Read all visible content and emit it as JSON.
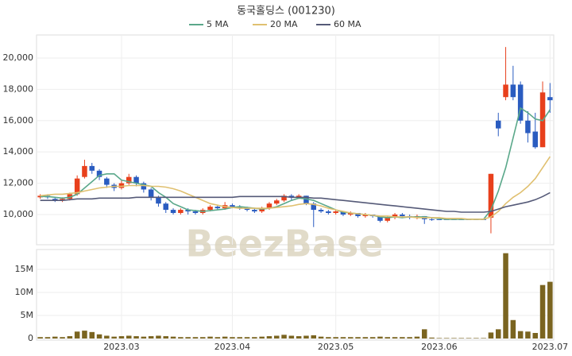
{
  "chart_data": {
    "type": "candlestick",
    "title": "동국홀딩스 (001230)",
    "watermark": "BeezBase",
    "categories": [
      null,
      null,
      null,
      null,
      null,
      null,
      null,
      null,
      null,
      null,
      null,
      "2023.03",
      null,
      null,
      null,
      null,
      null,
      null,
      null,
      null,
      null,
      null,
      null,
      null,
      null,
      null,
      "2023.04",
      null,
      null,
      null,
      null,
      null,
      null,
      null,
      null,
      null,
      null,
      null,
      null,
      null,
      "2023.05",
      null,
      null,
      null,
      null,
      null,
      null,
      null,
      null,
      null,
      null,
      null,
      null,
      null,
      "2023.06",
      null,
      null,
      null,
      null,
      null,
      null,
      null,
      null,
      null,
      null,
      null,
      null,
      null,
      null,
      "2023.07"
    ],
    "open": [
      11100,
      11200,
      11000,
      10900,
      11000,
      11300,
      12400,
      13100,
      12800,
      12300,
      11900,
      11700,
      12000,
      12400,
      12000,
      11600,
      11100,
      10700,
      10300,
      10100,
      10300,
      10200,
      10100,
      10300,
      10500,
      10400,
      10600,
      10500,
      10400,
      10300,
      10200,
      10400,
      10700,
      10900,
      11200,
      11100,
      11200,
      10700,
      10300,
      10200,
      10100,
      10200,
      10000,
      10100,
      9900,
      10000,
      9900,
      9600,
      9800,
      10000,
      9900,
      9800,
      9900,
      9700,
      9700,
      9700,
      9700,
      9700,
      9700,
      9700,
      9700,
      9800,
      16000,
      17500,
      18300,
      18300,
      16000,
      15300,
      14300,
      17500
    ],
    "close": [
      11200,
      11100,
      10900,
      11000,
      11300,
      12300,
      13100,
      12800,
      12400,
      11900,
      11700,
      12000,
      12400,
      12000,
      11600,
      11100,
      10700,
      10300,
      10100,
      10300,
      10200,
      10100,
      10300,
      10500,
      10400,
      10600,
      10500,
      10400,
      10300,
      10200,
      10400,
      10700,
      10900,
      11200,
      11100,
      11200,
      10700,
      10300,
      10200,
      10100,
      10200,
      10000,
      10100,
      9900,
      10000,
      9900,
      9600,
      9800,
      10000,
      9900,
      9800,
      9900,
      9700,
      9700,
      9700,
      9700,
      9700,
      9700,
      9700,
      9700,
      9700,
      12600,
      15500,
      18300,
      17500,
      16000,
      15200,
      14300,
      17800,
      17300
    ],
    "high": [
      11300,
      11300,
      11100,
      11100,
      11400,
      12500,
      13500,
      13300,
      12900,
      12400,
      12000,
      12200,
      12600,
      12500,
      12100,
      11700,
      11200,
      10800,
      10400,
      10400,
      10400,
      10300,
      10400,
      10600,
      10600,
      10800,
      10700,
      10600,
      10500,
      10400,
      10500,
      10800,
      11000,
      11300,
      11300,
      11300,
      11200,
      10800,
      10400,
      10300,
      10300,
      10200,
      10200,
      10100,
      10100,
      10000,
      9900,
      9900,
      10100,
      10100,
      10000,
      10000,
      9900,
      9800,
      9700,
      9700,
      9700,
      9700,
      9700,
      9700,
      9700,
      12600,
      16500,
      20700,
      19500,
      18500,
      16600,
      16500,
      18500,
      18400
    ],
    "low": [
      11000,
      11000,
      10800,
      10800,
      10900,
      11200,
      12300,
      12600,
      12200,
      11700,
      11500,
      11600,
      11900,
      11800,
      11400,
      10900,
      10500,
      10100,
      10000,
      10000,
      10000,
      10000,
      10000,
      10200,
      10300,
      10300,
      10400,
      10300,
      10200,
      10100,
      10100,
      10300,
      10600,
      10800,
      10900,
      11000,
      10600,
      9200,
      10100,
      10000,
      10000,
      9900,
      9900,
      9800,
      9800,
      9800,
      9500,
      9500,
      9700,
      9800,
      9700,
      9700,
      9400,
      9600,
      9700,
      9700,
      9700,
      9700,
      9700,
      9700,
      9700,
      8800,
      15000,
      17300,
      17300,
      15800,
      14600,
      14200,
      14300,
      16500
    ],
    "up_color": "#e8401c",
    "down_color": "#2a5cc0",
    "series": [
      {
        "name": "5 MA",
        "color": "#5aa88a",
        "values": [
          11150,
          11150,
          11100,
          11050,
          11100,
          11300,
          11700,
          12100,
          12500,
          12600,
          12600,
          12200,
          12100,
          12000,
          11900,
          11800,
          11400,
          11100,
          10700,
          10500,
          10300,
          10250,
          10200,
          10250,
          10300,
          10350,
          10450,
          10500,
          10450,
          10400,
          10350,
          10400,
          10500,
          10700,
          10900,
          11050,
          11000,
          10900,
          10700,
          10500,
          10300,
          10150,
          10100,
          10050,
          10000,
          9950,
          9850,
          9800,
          9850,
          9800,
          9850,
          9850,
          9850,
          9800,
          9750,
          9700,
          9700,
          9700,
          9700,
          9700,
          9700,
          10300,
          11500,
          13000,
          14900,
          16800,
          16500,
          16100,
          16000,
          16700
        ]
      },
      {
        "name": "20 MA",
        "color": "#e0c070",
        "values": [
          11200,
          11250,
          11300,
          11300,
          11350,
          11400,
          11500,
          11600,
          11700,
          11750,
          11800,
          11800,
          11850,
          11850,
          11850,
          11800,
          11800,
          11750,
          11650,
          11500,
          11300,
          11100,
          10900,
          10700,
          10600,
          10500,
          10450,
          10400,
          10400,
          10400,
          10400,
          10400,
          10450,
          10500,
          10550,
          10650,
          10700,
          10650,
          10550,
          10400,
          10300,
          10200,
          10100,
          10050,
          10000,
          9950,
          9900,
          9900,
          9850,
          9850,
          9850,
          9800,
          9800,
          9800,
          9800,
          9750,
          9750,
          9750,
          9700,
          9700,
          9700,
          9850,
          10200,
          10700,
          11100,
          11400,
          11800,
          12300,
          13000,
          13700
        ]
      },
      {
        "name": "60 MA",
        "color": "#555a78",
        "values": [
          10900,
          10900,
          10900,
          10900,
          10950,
          11000,
          11000,
          11000,
          11050,
          11050,
          11050,
          11050,
          11050,
          11100,
          11100,
          11100,
          11100,
          11100,
          11100,
          11100,
          11100,
          11100,
          11100,
          11100,
          11100,
          11100,
          11100,
          11150,
          11150,
          11150,
          11150,
          11150,
          11150,
          11150,
          11100,
          11100,
          11100,
          11050,
          11050,
          11000,
          10950,
          10900,
          10850,
          10800,
          10750,
          10700,
          10650,
          10600,
          10550,
          10500,
          10450,
          10400,
          10350,
          10300,
          10250,
          10200,
          10200,
          10150,
          10150,
          10150,
          10150,
          10200,
          10350,
          10500,
          10600,
          10700,
          10800,
          10950,
          11150,
          11400
        ]
      }
    ],
    "ylim": [
      8070,
      21470
    ],
    "yticks": [
      {
        "value": 10000,
        "label": "10,000"
      },
      {
        "value": 12000,
        "label": "12,000"
      },
      {
        "value": 14000,
        "label": "14,000"
      },
      {
        "value": 16000,
        "label": "16,000"
      },
      {
        "value": 18000,
        "label": "18,000"
      },
      {
        "value": 20000,
        "label": "20,000"
      }
    ],
    "grid": true,
    "volume": {
      "color": "#7a6420",
      "values": [
        300000,
        300000,
        400000,
        300000,
        500000,
        1500000,
        1700000,
        1400000,
        900000,
        600000,
        400000,
        500000,
        600000,
        500000,
        400000,
        500000,
        600000,
        500000,
        400000,
        300000,
        300000,
        300000,
        300000,
        400000,
        300000,
        400000,
        300000,
        300000,
        300000,
        300000,
        400000,
        500000,
        600000,
        800000,
        600000,
        500000,
        600000,
        700000,
        400000,
        300000,
        300000,
        300000,
        300000,
        300000,
        300000,
        300000,
        400000,
        300000,
        300000,
        300000,
        300000,
        400000,
        2000000,
        200000,
        100000,
        100000,
        100000,
        100000,
        100000,
        100000,
        100000,
        1300000,
        2000000,
        18500000,
        4000000,
        1600000,
        1500000,
        1200000,
        11600000,
        12300000
      ],
      "ylim": [
        -350000,
        19300000
      ],
      "yticks": [
        0,
        {
          "value": 5000000,
          "label": "5M"
        },
        {
          "value": 10000000,
          "label": "10M"
        },
        {
          "value": 15000000,
          "label": "15M"
        }
      ]
    }
  }
}
